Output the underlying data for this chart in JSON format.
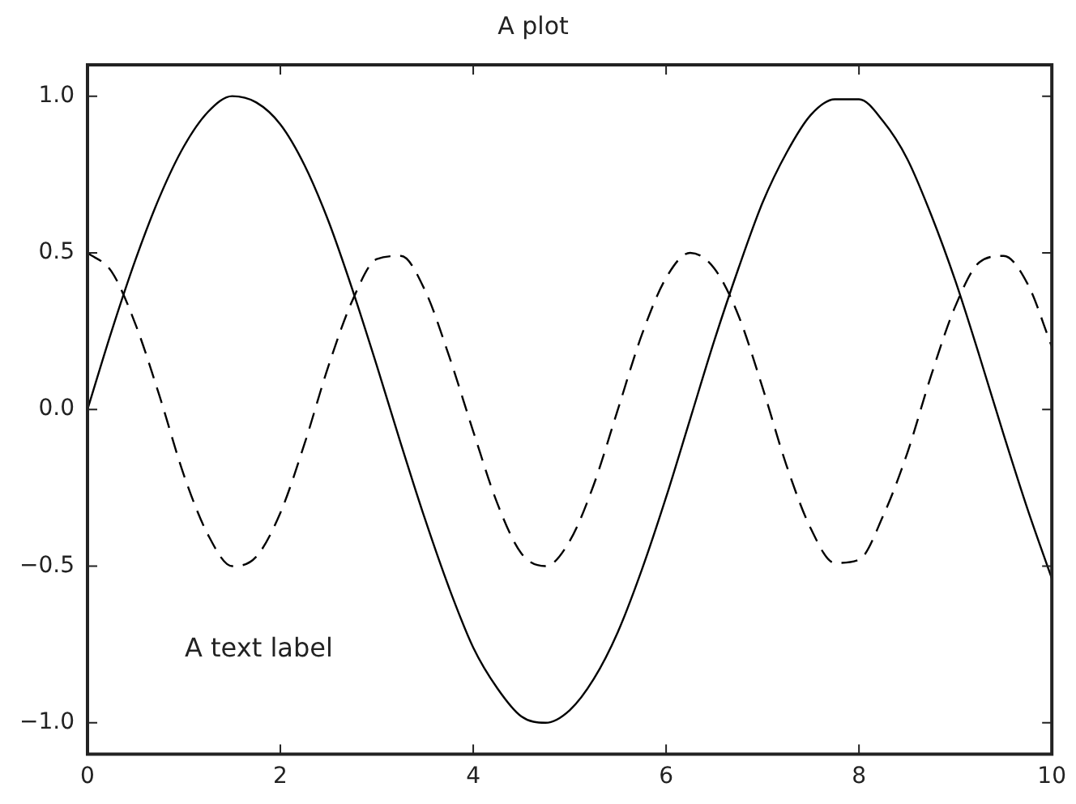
{
  "chart_data": {
    "type": "line",
    "title": "A plot",
    "x": [
      0,
      0.25,
      0.5,
      0.75,
      1,
      1.25,
      1.5,
      1.75,
      2,
      2.25,
      2.5,
      2.75,
      3,
      3.25,
      3.5,
      3.75,
      4,
      4.25,
      4.5,
      4.75,
      5,
      5.25,
      5.5,
      5.75,
      6,
      6.25,
      6.5,
      6.75,
      7,
      7.25,
      7.5,
      7.75,
      8,
      8.25,
      8.5,
      8.75,
      9,
      9.25,
      9.5,
      9.75,
      10
    ],
    "series": [
      {
        "color": "#000000",
        "line_style": "solid",
        "values": [
          0,
          0.25,
          0.48,
          0.68,
          0.84,
          0.95,
          1.0,
          0.98,
          0.91,
          0.78,
          0.6,
          0.38,
          0.14,
          -0.11,
          -0.35,
          -0.57,
          -0.76,
          -0.89,
          -0.98,
          -1.0,
          -0.96,
          -0.86,
          -0.71,
          -0.51,
          -0.28,
          -0.03,
          0.22,
          0.45,
          0.66,
          0.82,
          0.94,
          0.99,
          0.99,
          0.92,
          0.8,
          0.62,
          0.41,
          0.17,
          -0.08,
          -0.32,
          -0.54
        ]
      },
      {
        "color": "#000000",
        "line_style": "dashed",
        "values": [
          0.5,
          0.44,
          0.27,
          0.04,
          -0.21,
          -0.4,
          -0.5,
          -0.47,
          -0.33,
          -0.11,
          0.14,
          0.35,
          0.48,
          0.49,
          0.38,
          0.17,
          -0.07,
          -0.3,
          -0.46,
          -0.5,
          -0.42,
          -0.24,
          0.0,
          0.24,
          0.42,
          0.5,
          0.45,
          0.3,
          0.07,
          -0.18,
          -0.38,
          -0.49,
          -0.48,
          -0.34,
          -0.14,
          0.11,
          0.33,
          0.47,
          0.49,
          0.4,
          0.2
        ]
      }
    ],
    "xlim": [
      0,
      10
    ],
    "xticks": [
      0,
      2,
      4,
      6,
      8,
      10
    ],
    "ylim": [
      -1.1,
      1.1
    ],
    "yticks": [
      {
        "value": -1.0,
        "label": "−1.0"
      },
      {
        "value": -0.5,
        "label": "−0.5"
      },
      {
        "value": 0,
        "label": "0.0"
      },
      {
        "value": 0.5,
        "label": "0.5"
      },
      {
        "value": 1.0,
        "label": "1.0"
      }
    ],
    "annotations": [
      "A text label"
    ],
    "grid": false,
    "legend": false,
    "marker": "none"
  }
}
